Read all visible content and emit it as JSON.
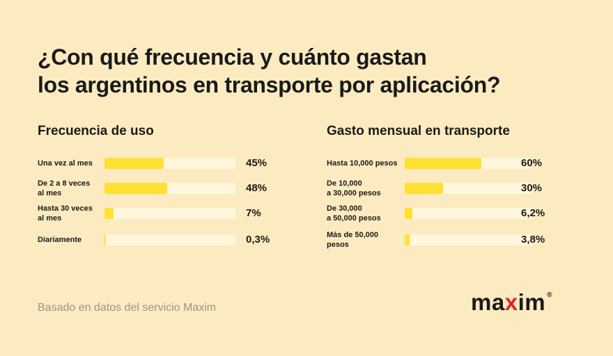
{
  "title": {
    "line1": "¿Con qué frecuencia y cuánto gastan",
    "line2": "los argentinos en transporte por aplicación?"
  },
  "footer": "Basado en datos del servicio Maxim",
  "logo": {
    "text_start": "ma",
    "text_accent": "x",
    "text_end": "im",
    "registered": "®"
  },
  "colors": {
    "background": "#FCEBC0",
    "bar_fill": "#FFE033",
    "bar_track": "#FFF7DB",
    "logo_accent": "#E8202A"
  },
  "chart_data": [
    {
      "type": "bar",
      "orientation": "horizontal",
      "title": "Frecuencia de uso",
      "categories": [
        "Una vez al mes",
        "De 2 a 8 veces\nal mes",
        "Hasta 30 veces\nal mes",
        "Diariamente"
      ],
      "values": [
        45,
        48,
        7,
        0.3
      ],
      "value_labels": [
        "45%",
        "48%",
        "7%",
        "0,3%"
      ],
      "xlim": [
        0,
        100
      ]
    },
    {
      "type": "bar",
      "orientation": "horizontal",
      "title": "Gasto mensual en transporte",
      "categories": [
        "Hasta 10,000 pesos",
        "De 10,000\na 30,000 pesos",
        "De 30,000\na 50,000 pesos",
        "Más de 50,000 pesos"
      ],
      "values": [
        60,
        30,
        6.2,
        3.8
      ],
      "value_labels": [
        "60%",
        "30%",
        "6,2%",
        "3,8%"
      ],
      "xlim": [
        0,
        100
      ]
    }
  ]
}
